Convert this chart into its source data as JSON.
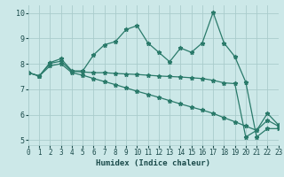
{
  "title": "",
  "xlabel": "Humidex (Indice chaleur)",
  "bg_color": "#cce8e8",
  "grid_color": "#aacccc",
  "line_color": "#2a7a6a",
  "xlim": [
    0,
    23
  ],
  "ylim": [
    4.8,
    10.3
  ],
  "xticks": [
    0,
    1,
    2,
    3,
    4,
    5,
    6,
    7,
    8,
    9,
    10,
    11,
    12,
    13,
    14,
    15,
    16,
    17,
    18,
    19,
    20,
    21,
    22,
    23
  ],
  "yticks": [
    5,
    6,
    7,
    8,
    9,
    10
  ],
  "line1_x": [
    0,
    1,
    2,
    3,
    4,
    5,
    6,
    7,
    8,
    9,
    10,
    11,
    12,
    13,
    14,
    15,
    16,
    17,
    18,
    19,
    20,
    21,
    22,
    23
  ],
  "line1_y": [
    7.65,
    7.52,
    8.05,
    8.2,
    7.72,
    7.72,
    8.35,
    8.75,
    8.87,
    9.35,
    9.5,
    8.82,
    8.45,
    8.08,
    8.62,
    8.45,
    8.82,
    10.02,
    8.82,
    8.28,
    7.28,
    5.12,
    5.45,
    5.45
  ],
  "line2_x": [
    0,
    1,
    2,
    3,
    4,
    5,
    6,
    7,
    8,
    9,
    10,
    11,
    12,
    13,
    14,
    15,
    16,
    17,
    18,
    19,
    20,
    21,
    22,
    23
  ],
  "line2_y": [
    7.65,
    7.52,
    8.02,
    8.1,
    7.7,
    7.68,
    7.65,
    7.65,
    7.62,
    7.6,
    7.58,
    7.55,
    7.52,
    7.5,
    7.48,
    7.45,
    7.42,
    7.35,
    7.25,
    7.22,
    5.12,
    5.38,
    6.05,
    5.6
  ],
  "line3_x": [
    0,
    1,
    2,
    3,
    4,
    5,
    6,
    7,
    8,
    9,
    10,
    11,
    12,
    13,
    14,
    15,
    16,
    17,
    18,
    19,
    20,
    21,
    22,
    23
  ],
  "line3_y": [
    7.65,
    7.52,
    7.92,
    8.0,
    7.65,
    7.55,
    7.42,
    7.3,
    7.18,
    7.05,
    6.92,
    6.8,
    6.68,
    6.55,
    6.42,
    6.3,
    6.18,
    6.05,
    5.88,
    5.72,
    5.55,
    5.38,
    5.78,
    5.55
  ]
}
